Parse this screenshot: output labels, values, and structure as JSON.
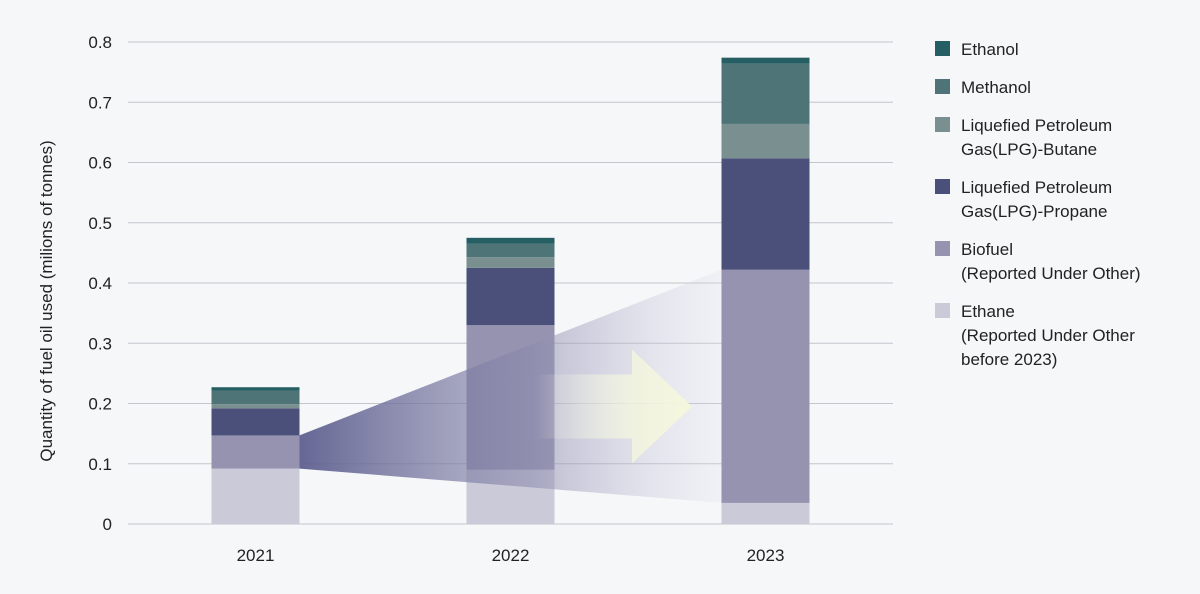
{
  "chart_data": {
    "type": "bar",
    "stacked": true,
    "ylabel": "Quantity of fuel oil used (milions of tonnes)",
    "ylim": [
      0,
      0.8
    ],
    "yticks": [
      "0",
      "0.1",
      "0.2",
      "0.3",
      "0.4",
      "0.5",
      "0.6",
      "0.7",
      "0.8"
    ],
    "grid": true,
    "legend_position": "right",
    "categories": [
      "2021",
      "2022",
      "2023"
    ],
    "series": [
      {
        "name": "Ethane",
        "lines": [
          "Ethane",
          "(Reported Under Other",
          "before 2023)"
        ],
        "color": "#cacad9",
        "values": [
          0.092,
          0.09,
          0.035
        ]
      },
      {
        "name": "Biofuel",
        "lines": [
          "Biofuel",
          "(Reported Under Other)"
        ],
        "color": "#9593b0",
        "values": [
          0.055,
          0.24,
          0.387
        ]
      },
      {
        "name": "Liquefied Petroleum Gas(LPG)-Propane",
        "lines": [
          "Liquefied Petroleum",
          "Gas(LPG)-Propane"
        ],
        "color": "#4b507a",
        "values": [
          0.045,
          0.095,
          0.185
        ]
      },
      {
        "name": "Liquefied Petroleum Gas(LPG)-Butane",
        "lines": [
          "Liquefied Petroleum",
          "Gas(LPG)-Butane"
        ],
        "color": "#7a9090",
        "values": [
          0.007,
          0.018,
          0.057
        ]
      },
      {
        "name": "Methanol",
        "lines": [
          "Methanol"
        ],
        "color": "#4e7478",
        "values": [
          0.022,
          0.022,
          0.1
        ]
      },
      {
        "name": "Ethanol",
        "lines": [
          "Ethanol"
        ],
        "color": "#255e63",
        "values": [
          0.006,
          0.01,
          0.01
        ]
      }
    ]
  }
}
